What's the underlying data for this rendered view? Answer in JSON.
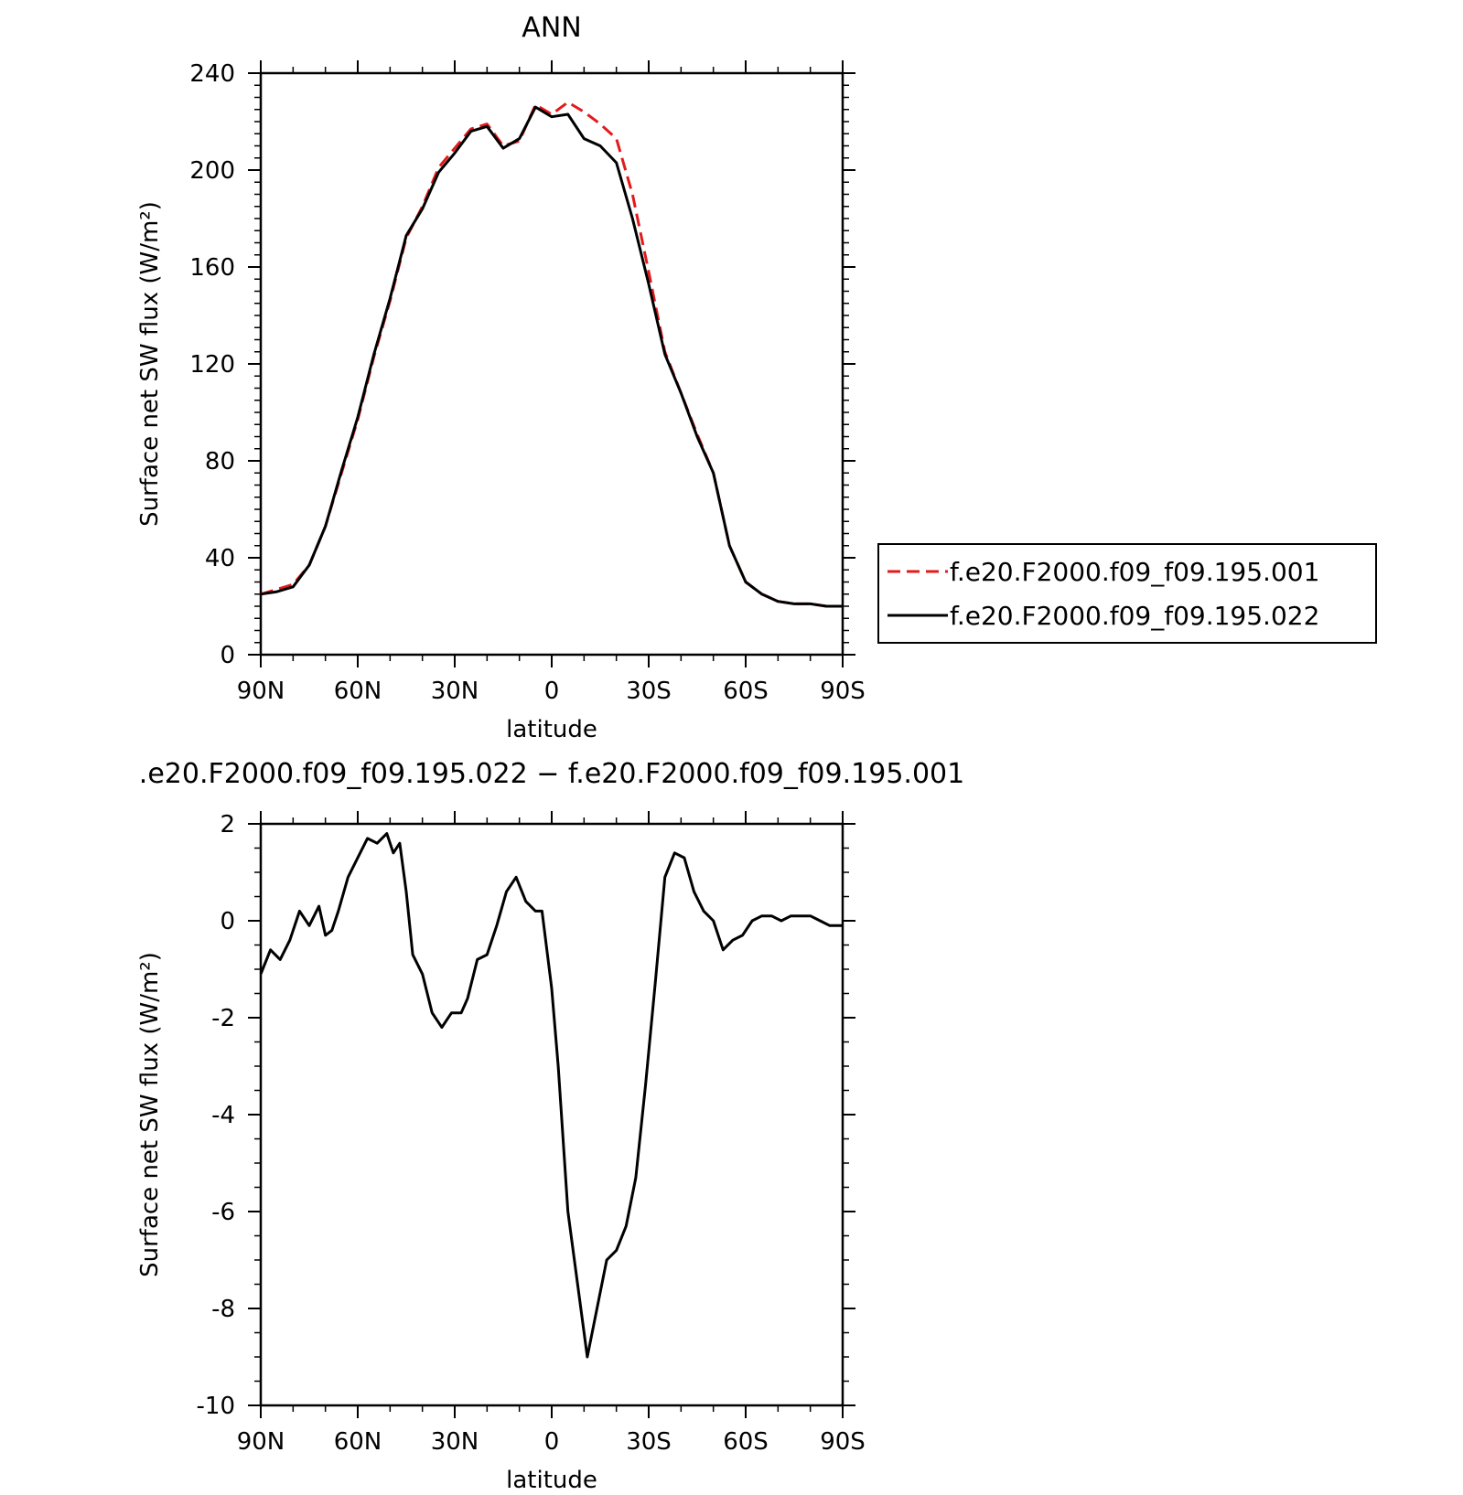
{
  "chart_data": [
    {
      "type": "line",
      "title": "ANN",
      "xlabel": "latitude",
      "ylabel": "Surface net SW flux (W/m²)",
      "xlim": [
        90,
        -90
      ],
      "ylim": [
        0,
        240
      ],
      "x_ticks": [
        {
          "value": 90,
          "label": "90N"
        },
        {
          "value": 60,
          "label": "60N"
        },
        {
          "value": 30,
          "label": "30N"
        },
        {
          "value": 0,
          "label": "0"
        },
        {
          "value": -30,
          "label": "30S"
        },
        {
          "value": -60,
          "label": "60S"
        },
        {
          "value": -90,
          "label": "90S"
        }
      ],
      "y_ticks": [
        0,
        40,
        80,
        120,
        160,
        200,
        240
      ],
      "grid": false,
      "legend_position": "right",
      "series": [
        {
          "name": "f.e20.F2000.f09_f09.195.001",
          "color": "#e31a1c",
          "dash": "dashed",
          "x": [
            90,
            85,
            80,
            75,
            70,
            65,
            60,
            55,
            50,
            45,
            40,
            35,
            30,
            25,
            20,
            15,
            10,
            5,
            0,
            -5,
            -10,
            -15,
            -20,
            -25,
            -30,
            -35,
            -40,
            -45,
            -50,
            -55,
            -60,
            -65,
            -70,
            -75,
            -80,
            -85,
            -90
          ],
          "y": [
            25,
            27,
            29,
            37,
            53,
            75,
            97,
            123,
            146,
            172,
            185,
            201,
            209,
            217,
            219,
            210,
            212,
            227,
            223,
            228,
            224,
            219,
            213,
            190,
            158,
            125,
            108,
            91,
            75,
            45,
            30,
            25,
            22,
            21,
            21,
            20,
            20
          ]
        },
        {
          "name": "f.e20.F2000.f09_f09.195.022",
          "color": "#000000",
          "dash": "solid",
          "x": [
            90,
            85,
            80,
            75,
            70,
            65,
            60,
            55,
            50,
            45,
            40,
            35,
            30,
            25,
            20,
            15,
            10,
            5,
            0,
            -5,
            -10,
            -15,
            -20,
            -25,
            -30,
            -35,
            -40,
            -45,
            -50,
            -55,
            -60,
            -65,
            -70,
            -75,
            -80,
            -85,
            -90
          ],
          "y": [
            25,
            26,
            28,
            37,
            53,
            76,
            98,
            124,
            147,
            173,
            184,
            199,
            207,
            216,
            218,
            209,
            213,
            226,
            222,
            223,
            213,
            210,
            203,
            180,
            153,
            124,
            108,
            90,
            75,
            45,
            30,
            25,
            22,
            21,
            21,
            20,
            20
          ]
        }
      ]
    },
    {
      "type": "line",
      "title": ".e20.F2000.f09_f09.195.022 − f.e20.F2000.f09_f09.195.001",
      "xlabel": "latitude",
      "ylabel": "Surface net SW flux (W/m²)",
      "xlim": [
        90,
        -90
      ],
      "ylim": [
        -10,
        2
      ],
      "x_ticks": [
        {
          "value": 90,
          "label": "90N"
        },
        {
          "value": 60,
          "label": "60N"
        },
        {
          "value": 30,
          "label": "30N"
        },
        {
          "value": 0,
          "label": "0"
        },
        {
          "value": -30,
          "label": "30S"
        },
        {
          "value": -60,
          "label": "60S"
        },
        {
          "value": -90,
          "label": "90S"
        }
      ],
      "y_ticks": [
        -10,
        -8,
        -6,
        -4,
        -2,
        0,
        2
      ],
      "grid": false,
      "series": [
        {
          "color": "#000000",
          "dash": "solid",
          "x": [
            90,
            87,
            84,
            81,
            78,
            75,
            72,
            70,
            68,
            66,
            63,
            60,
            57,
            54,
            51,
            49,
            47,
            45,
            43,
            40,
            37,
            34,
            31,
            28,
            26,
            23,
            20,
            17,
            14,
            11,
            8,
            5,
            3,
            0,
            -2,
            -5,
            -8,
            -11,
            -14,
            -17,
            -20,
            -23,
            -26,
            -29,
            -32,
            -35,
            -38,
            -41,
            -44,
            -47,
            -50,
            -53,
            -56,
            -59,
            -62,
            -65,
            -68,
            -71,
            -74,
            -77,
            -80,
            -83,
            -86,
            -90
          ],
          "y": [
            -1.1,
            -0.6,
            -0.8,
            -0.4,
            0.2,
            -0.1,
            0.3,
            -0.3,
            -0.2,
            0.2,
            0.9,
            1.3,
            1.7,
            1.6,
            1.8,
            1.4,
            1.6,
            0.6,
            -0.7,
            -1.1,
            -1.9,
            -2.2,
            -1.9,
            -1.9,
            -1.6,
            -0.8,
            -0.7,
            -0.1,
            0.6,
            0.9,
            0.4,
            0.2,
            0.2,
            -1.4,
            -3.0,
            -6.0,
            -7.5,
            -9.0,
            -8.0,
            -7.0,
            -6.8,
            -6.3,
            -5.3,
            -3.4,
            -1.3,
            0.9,
            1.4,
            1.3,
            0.6,
            0.2,
            0.0,
            -0.6,
            -0.4,
            -0.3,
            0.0,
            0.1,
            0.1,
            0.0,
            0.1,
            0.1,
            0.1,
            0.0,
            -0.1,
            -0.1
          ]
        }
      ]
    }
  ]
}
